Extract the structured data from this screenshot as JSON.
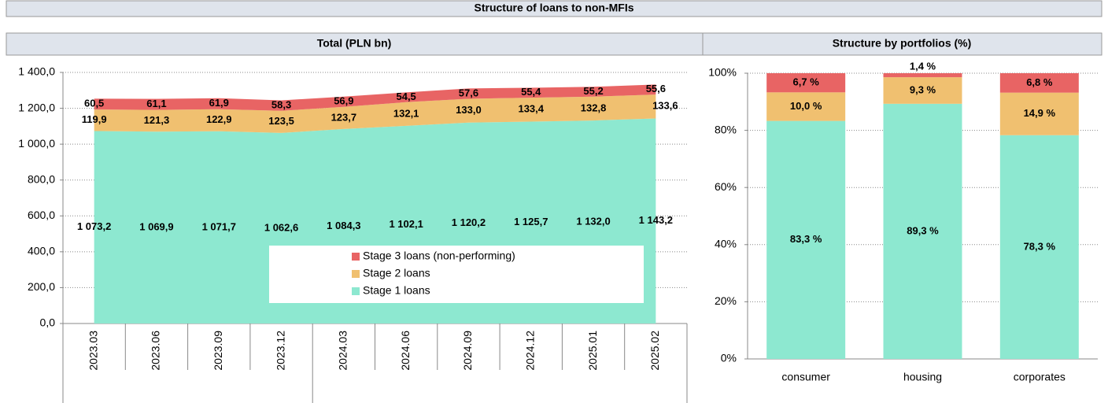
{
  "title": "Structure of loans to non-MFIs",
  "chart_data": [
    {
      "type": "area",
      "stacked": true,
      "title": "Total (PLN bn)",
      "categories": [
        "2023.03",
        "2023.06",
        "2023.09",
        "2023.12",
        "2024.03",
        "2024.06",
        "2024.09",
        "2024.12",
        "2025.01",
        "2025.02"
      ],
      "series": [
        {
          "name": "Stage 1 loans",
          "color": "#8de8d0",
          "values": [
            1073.2,
            1069.9,
            1071.7,
            1062.6,
            1084.3,
            1102.1,
            1120.2,
            1125.7,
            1132.0,
            1143.2
          ],
          "value_labels": [
            "1 073,2",
            "1 069,9",
            "1 071,7",
            "1 062,6",
            "1 084,3",
            "1 102,1",
            "1 120,2",
            "1 125,7",
            "1 132,0",
            "1 143,2"
          ]
        },
        {
          "name": "Stage 2 loans",
          "color": "#f0c070",
          "values": [
            119.9,
            121.3,
            122.9,
            123.5,
            123.7,
            132.1,
            133.0,
            133.4,
            132.8,
            133.6
          ],
          "value_labels": [
            "119,9",
            "121,3",
            "122,9",
            "123,5",
            "123,7",
            "132,1",
            "133,0",
            "133,4",
            "132,8",
            "133,6"
          ]
        },
        {
          "name": "Stage 3 loans (non-performing)",
          "color": "#e86464",
          "values": [
            60.5,
            61.1,
            61.9,
            58.3,
            56.9,
            54.5,
            57.6,
            55.4,
            55.2,
            55.6
          ],
          "value_labels": [
            "60,5",
            "61,1",
            "61,9",
            "58,3",
            "56,9",
            "54,5",
            "57,6",
            "55,4",
            "55,2",
            "55,6"
          ]
        }
      ],
      "ylim": [
        0,
        1400
      ],
      "yticks": [
        {
          "value": 0,
          "label": "0,0"
        },
        {
          "value": 200,
          "label": "200,0"
        },
        {
          "value": 400,
          "label": "400,0"
        },
        {
          "value": 600,
          "label": "600,0"
        },
        {
          "value": 800,
          "label": "800,0"
        },
        {
          "value": 1000,
          "label": "1 000,0"
        },
        {
          "value": 1200,
          "label": "1 200,0"
        },
        {
          "value": 1400,
          "label": "1 400,0"
        }
      ],
      "grid": true
    },
    {
      "type": "bar",
      "stacked": true,
      "title": "Structure by portfolios (%)",
      "categories": [
        "consumer",
        "housing",
        "corporates"
      ],
      "series": [
        {
          "color": "#8de8d0",
          "values": [
            83.3,
            89.3,
            78.3
          ],
          "value_labels": [
            "83,3 %",
            "89,3 %",
            "78,3 %"
          ]
        },
        {
          "color": "#f0c070",
          "values": [
            10.0,
            9.3,
            14.9
          ],
          "value_labels": [
            "10,0 %",
            "9,3 %",
            "14,9 %"
          ]
        },
        {
          "color": "#e86464",
          "values": [
            6.7,
            1.4,
            6.8
          ],
          "value_labels": [
            "6,7 %",
            "1,4 %",
            "6,8 %"
          ]
        }
      ],
      "ylim": [
        0,
        100
      ],
      "yticks": [
        {
          "value": 0,
          "label": "0%"
        },
        {
          "value": 20,
          "label": "20%"
        },
        {
          "value": 40,
          "label": "40%"
        },
        {
          "value": 60,
          "label": "60%"
        },
        {
          "value": 80,
          "label": "80%"
        },
        {
          "value": 100,
          "label": "100%"
        }
      ],
      "grid": true
    }
  ]
}
